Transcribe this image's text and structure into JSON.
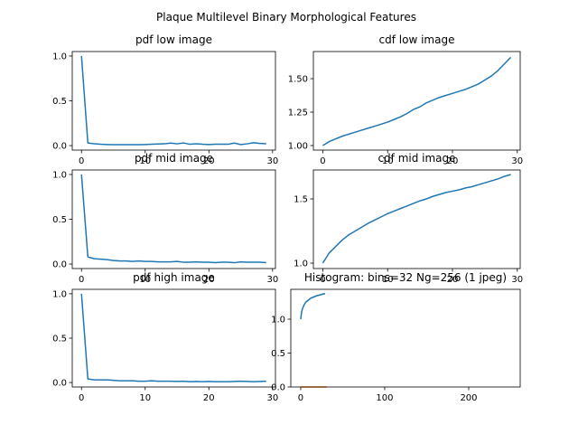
{
  "title": "Plaque Multilevel Binary Morphological Features",
  "chart_data": [
    {
      "type": "line",
      "title": "pdf low image",
      "x": [
        0,
        1,
        2,
        3,
        4,
        5,
        6,
        7,
        8,
        9,
        10,
        11,
        12,
        13,
        14,
        15,
        16,
        17,
        18,
        19,
        20,
        21,
        22,
        23,
        24,
        25,
        26,
        27,
        28,
        29
      ],
      "series": [
        {
          "color": "#1f77b4",
          "values": [
            1.0,
            0.03,
            0.02,
            0.015,
            0.012,
            0.01,
            0.01,
            0.01,
            0.01,
            0.01,
            0.012,
            0.015,
            0.018,
            0.02,
            0.028,
            0.02,
            0.03,
            0.015,
            0.02,
            0.015,
            0.012,
            0.015,
            0.015,
            0.015,
            0.028,
            0.012,
            0.02,
            0.032,
            0.025,
            0.02
          ]
        }
      ],
      "xlim": [
        -1.45,
        30.45
      ],
      "xticks": [
        0,
        10,
        20,
        30
      ],
      "ylim": [
        -0.05,
        1.05
      ],
      "yticks": [
        {
          "value": 0,
          "label": "0.0"
        },
        {
          "value": 0.5,
          "label": "0.5"
        },
        {
          "value": 1,
          "label": "1.0"
        }
      ]
    },
    {
      "type": "line",
      "title": "cdf low image",
      "x": [
        0,
        1,
        2,
        3,
        4,
        5,
        6,
        7,
        8,
        9,
        10,
        11,
        12,
        13,
        14,
        15,
        16,
        17,
        18,
        19,
        20,
        21,
        22,
        23,
        24,
        25,
        26,
        27,
        28,
        29
      ],
      "series": [
        {
          "color": "#1f77b4",
          "values": [
            1.0,
            1.03,
            1.05,
            1.07,
            1.085,
            1.1,
            1.115,
            1.13,
            1.145,
            1.16,
            1.175,
            1.195,
            1.215,
            1.24,
            1.27,
            1.29,
            1.32,
            1.34,
            1.36,
            1.375,
            1.39,
            1.405,
            1.42,
            1.44,
            1.46,
            1.49,
            1.52,
            1.56,
            1.61,
            1.66
          ]
        }
      ],
      "xlim": [
        -1.45,
        30.45
      ],
      "xticks": [
        0,
        10,
        20,
        30
      ],
      "ylim": [
        0.966,
        1.703
      ],
      "yticks": [
        {
          "value": 1,
          "label": "1.00"
        },
        {
          "value": 1.25,
          "label": "1.25"
        },
        {
          "value": 1.5,
          "label": "1.50"
        }
      ]
    },
    {
      "type": "line",
      "title": "pdf mid image",
      "x": [
        0,
        1,
        2,
        3,
        4,
        5,
        6,
        7,
        8,
        9,
        10,
        11,
        12,
        13,
        14,
        15,
        16,
        17,
        18,
        19,
        20,
        21,
        22,
        23,
        24,
        25,
        26,
        27,
        28,
        29
      ],
      "series": [
        {
          "color": "#1f77b4",
          "values": [
            1.0,
            0.08,
            0.06,
            0.055,
            0.05,
            0.04,
            0.035,
            0.035,
            0.03,
            0.035,
            0.03,
            0.03,
            0.025,
            0.025,
            0.025,
            0.03,
            0.02,
            0.02,
            0.025,
            0.02,
            0.02,
            0.015,
            0.02,
            0.02,
            0.015,
            0.025,
            0.02,
            0.02,
            0.02,
            0.015
          ]
        }
      ],
      "xlim": [
        -1.45,
        30.45
      ],
      "xticks": [
        0,
        10,
        20,
        30
      ],
      "ylim": [
        -0.05,
        1.05
      ],
      "yticks": [
        {
          "value": 0,
          "label": "0.0"
        },
        {
          "value": 0.5,
          "label": "0.5"
        },
        {
          "value": 1,
          "label": "1.0"
        }
      ]
    },
    {
      "type": "line",
      "title": "cdf mid image",
      "x": [
        0,
        1,
        2,
        3,
        4,
        5,
        6,
        7,
        8,
        9,
        10,
        11,
        12,
        13,
        14,
        15,
        16,
        17,
        18,
        19,
        20,
        21,
        22,
        23,
        24,
        25,
        26,
        27,
        28,
        29
      ],
      "series": [
        {
          "color": "#1f77b4",
          "values": [
            1.0,
            1.08,
            1.13,
            1.18,
            1.22,
            1.25,
            1.28,
            1.31,
            1.335,
            1.36,
            1.385,
            1.405,
            1.425,
            1.445,
            1.465,
            1.485,
            1.5,
            1.52,
            1.535,
            1.55,
            1.56,
            1.57,
            1.585,
            1.595,
            1.61,
            1.625,
            1.64,
            1.655,
            1.675,
            1.69
          ]
        }
      ],
      "xlim": [
        -1.45,
        30.45
      ],
      "xticks": [
        0,
        10,
        20,
        30
      ],
      "ylim": [
        0.958,
        1.725
      ],
      "yticks": [
        {
          "value": 1,
          "label": "1.0"
        },
        {
          "value": 1.5,
          "label": "1.5"
        }
      ]
    },
    {
      "type": "line",
      "title": "pdf high image",
      "x": [
        0,
        1,
        2,
        3,
        4,
        5,
        6,
        7,
        8,
        9,
        10,
        11,
        12,
        13,
        14,
        15,
        16,
        17,
        18,
        19,
        20,
        21,
        22,
        23,
        24,
        25,
        26,
        27,
        28,
        29
      ],
      "series": [
        {
          "color": "#1f77b4",
          "values": [
            1.0,
            0.04,
            0.03,
            0.03,
            0.03,
            0.025,
            0.02,
            0.02,
            0.02,
            0.015,
            0.015,
            0.02,
            0.015,
            0.015,
            0.015,
            0.012,
            0.015,
            0.01,
            0.012,
            0.01,
            0.012,
            0.01,
            0.01,
            0.01,
            0.012,
            0.015,
            0.012,
            0.01,
            0.012,
            0.015
          ]
        }
      ],
      "xlim": [
        -1.45,
        30.45
      ],
      "xticks": [
        0,
        10,
        20,
        30
      ],
      "ylim": [
        -0.05,
        1.05
      ],
      "yticks": [
        {
          "value": 0,
          "label": "0.0"
        },
        {
          "value": 0.5,
          "label": "0.5"
        },
        {
          "value": 1,
          "label": "1.0"
        }
      ]
    },
    {
      "type": "line",
      "title": "Histogram: bins=32 Ng=256 (1 jpeg)",
      "series": [
        {
          "color": "#1f77b4",
          "x": [
            0,
            1,
            2,
            3,
            4,
            5,
            6,
            7,
            8,
            9,
            10,
            11,
            12,
            13,
            14,
            15,
            16,
            17,
            18,
            19,
            20,
            21,
            22,
            23,
            24,
            25,
            26,
            27,
            28,
            29
          ],
          "values": [
            1.0,
            1.1,
            1.15,
            1.18,
            1.21,
            1.23,
            1.25,
            1.26,
            1.27,
            1.28,
            1.29,
            1.3,
            1.31,
            1.315,
            1.32,
            1.325,
            1.33,
            1.335,
            1.34,
            1.345,
            1.35,
            1.35,
            1.355,
            1.36,
            1.36,
            1.365,
            1.37,
            1.37,
            1.375,
            1.38
          ]
        },
        {
          "color": "#ff7f0e",
          "x": [
            0,
            1,
            2,
            3,
            4,
            5,
            6,
            7,
            8,
            9,
            10,
            11,
            12,
            13,
            14,
            15,
            16,
            17,
            18,
            19,
            20,
            21,
            22,
            23,
            24,
            25,
            26,
            27,
            28,
            29,
            30,
            31
          ],
          "values": [
            0,
            0,
            0,
            0,
            0,
            0,
            0,
            0,
            0,
            0,
            0,
            0,
            0,
            0,
            0,
            0,
            0,
            0,
            0,
            0,
            0,
            0,
            0,
            0,
            0,
            0,
            0,
            0,
            0,
            0,
            0,
            0
          ]
        }
      ],
      "xlim": [
        -11.8,
        261.3
      ],
      "xticks": [
        0,
        100,
        200
      ],
      "ylim": [
        0,
        1.44
      ],
      "yticks": [
        {
          "value": 0,
          "label": "0.0"
        },
        {
          "value": 0.5,
          "label": "0.5"
        },
        {
          "value": 1,
          "label": "1.0"
        }
      ]
    }
  ]
}
